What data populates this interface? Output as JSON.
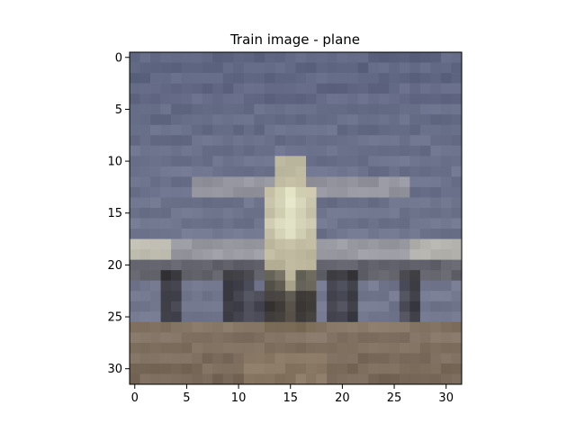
{
  "figure": {
    "title": "Train image - plane"
  },
  "chart_data": {
    "type": "heatmap",
    "title": "Train image - plane",
    "xlabel": "",
    "ylabel": "",
    "image_size": [
      32,
      32
    ],
    "xlim": [
      -0.5,
      31.5
    ],
    "ylim": [
      31.5,
      -0.5
    ],
    "x_ticks": [
      0,
      5,
      10,
      15,
      20,
      25,
      30
    ],
    "y_ticks": [
      0,
      5,
      10,
      15,
      20,
      25,
      30
    ],
    "palette": {
      "sky_top": "#646b86",
      "sky_mid": "#707690",
      "sky_low": "#7a7e94",
      "fuselage_glow": "#f2f1cf",
      "fuselage": "#c9c3a5",
      "wing": "#b9b6b4",
      "wing_dark": "#5b5856",
      "gear": "#2c2a2c",
      "ground": "#8a7a6a",
      "ground_dark": "#6e6052"
    }
  }
}
